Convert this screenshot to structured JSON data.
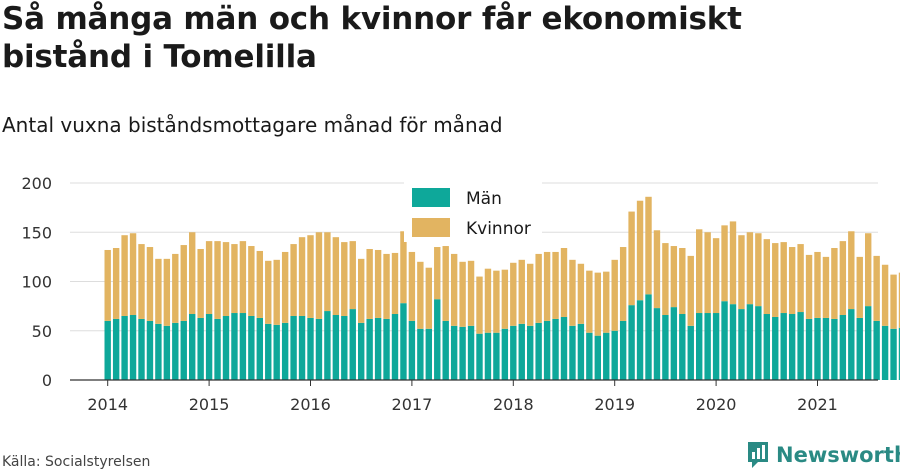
{
  "title": "Så många män och kvinnor får ekonomiskt bistånd i Tomelilla",
  "subtitle": "Antal vuxna biståndsmottagare månad för månad",
  "source": "Källa: Socialstyrelsen",
  "brand": {
    "name": "Newsworthy",
    "icon": "newsworthy-logo-icon"
  },
  "colors": {
    "man": "#0ea89a",
    "kvinnor": "#e2b461",
    "grid": "#dddddd",
    "axis": "#333333"
  },
  "chart_data": {
    "type": "bar",
    "stacked": true,
    "start": "2014-01",
    "x_tick_labels": [
      "2014",
      "2015",
      "2016",
      "2017",
      "2018",
      "2019",
      "2020",
      "2021"
    ],
    "ylim": [
      0,
      200
    ],
    "y_ticks": [
      0,
      50,
      100,
      150,
      200
    ],
    "grid": true,
    "legend_position": "top-center",
    "series": [
      {
        "name": "Män",
        "values": [
          60,
          62,
          65,
          66,
          62,
          60,
          57,
          55,
          58,
          60,
          67,
          63,
          67,
          62,
          65,
          68,
          68,
          65,
          63,
          57,
          56,
          58,
          65,
          65,
          63,
          62,
          70,
          66,
          65,
          72,
          58,
          62,
          63,
          62,
          67,
          78,
          60,
          52,
          52,
          82,
          60,
          55,
          54,
          55,
          47,
          48,
          48,
          52,
          55,
          57,
          55,
          58,
          60,
          62,
          64,
          55,
          57,
          48,
          45,
          48,
          50,
          60,
          76,
          81,
          87,
          73,
          66,
          74,
          67,
          55,
          68,
          68,
          68,
          80,
          77,
          72,
          77,
          75,
          67,
          64,
          68,
          67,
          69,
          62,
          63,
          63,
          62,
          66,
          72,
          63,
          75,
          60,
          55,
          52,
          53,
          50,
          49
        ]
      },
      {
        "name": "Kvinnor",
        "values": [
          72,
          72,
          82,
          83,
          76,
          75,
          66,
          68,
          70,
          77,
          83,
          70,
          74,
          79,
          75,
          70,
          73,
          71,
          68,
          64,
          66,
          72,
          73,
          80,
          84,
          88,
          80,
          79,
          75,
          69,
          65,
          71,
          69,
          66,
          62,
          73,
          70,
          68,
          62,
          53,
          76,
          73,
          66,
          66,
          58,
          65,
          63,
          60,
          64,
          65,
          63,
          70,
          70,
          68,
          70,
          67,
          61,
          63,
          64,
          62,
          72,
          75,
          95,
          101,
          99,
          79,
          73,
          62,
          67,
          71,
          85,
          82,
          76,
          77,
          84,
          75,
          73,
          74,
          76,
          75,
          72,
          68,
          69,
          65,
          67,
          62,
          72,
          75,
          79,
          62,
          74,
          66,
          62,
          55,
          56,
          50,
          52
        ]
      }
    ]
  }
}
